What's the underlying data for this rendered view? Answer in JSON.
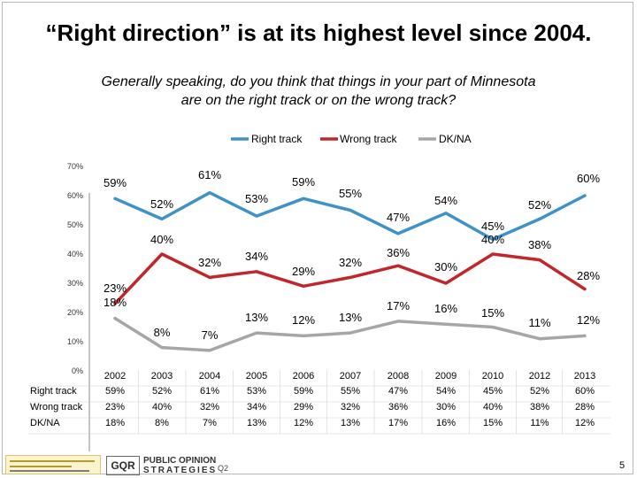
{
  "title": "“Right direction” is at its highest level since 2004.",
  "subtitle_line1": "Generally speaking, do you think that things in your part of Minnesota",
  "subtitle_line2": "are on the right track or on the wrong track?",
  "footer_id": "Q2",
  "page_number": "5",
  "logo_pos_line1": "PUBLIC OPINION",
  "logo_pos_line2": "STRATEGIES",
  "logo_gqa": "GQR",
  "colors": {
    "right_track": "#3e92c8",
    "wrong_track": "#c0262c",
    "dk_na": "#a6a6a6",
    "accent_line": "#8a8a8a"
  },
  "chart_data": {
    "type": "line",
    "title": "",
    "xlabel": "",
    "ylabel": "",
    "ylim": [
      0,
      70
    ],
    "yticks": [
      "0%",
      "10%",
      "20%",
      "30%",
      "40%",
      "50%",
      "60%",
      "70%"
    ],
    "gridlines": false,
    "legend_position": "top",
    "categories": [
      "2002",
      "2003",
      "2004",
      "2005",
      "2006",
      "2007",
      "2008",
      "2009",
      "2010",
      "2012",
      "2013"
    ],
    "series": [
      {
        "name": "Right track",
        "color_key": "right_track",
        "values": [
          59,
          52,
          61,
          53,
          59,
          55,
          47,
          54,
          45,
          52,
          60
        ],
        "labels": [
          "59%",
          "52%",
          "61%",
          "53%",
          "59%",
          "55%",
          "47%",
          "54%",
          "45%",
          "52%",
          "60%"
        ],
        "table_values": [
          "59%",
          "52%",
          "61%",
          "53%",
          "59%",
          "55%",
          "47%",
          "54%",
          "45%",
          "52%",
          "60%"
        ]
      },
      {
        "name": "Wrong track",
        "color_key": "wrong_track",
        "values": [
          23,
          40,
          32,
          34,
          29,
          32,
          36,
          30,
          40,
          38,
          28
        ],
        "labels": [
          "23%",
          "40%",
          "32%",
          "34%",
          "29%",
          "32%",
          "36%",
          "30%",
          "40%",
          "38%",
          "28%"
        ],
        "table_values": [
          "23%",
          "40%",
          "32%",
          "34%",
          "29%",
          "32%",
          "36%",
          "30%",
          "40%",
          "38%",
          "28%"
        ]
      },
      {
        "name": "DK/NA",
        "color_key": "dk_na",
        "values": [
          18,
          8,
          7,
          13,
          12,
          13,
          17,
          16,
          15,
          11,
          12
        ],
        "labels": [
          "18%",
          "8%",
          "7%",
          "13%",
          "12%",
          "13%",
          "17%",
          "16%",
          "15%",
          "11%",
          "12%"
        ],
        "table_values": [
          "18%",
          "8%",
          "7%",
          "13%",
          "12%",
          "13%",
          "17%",
          "16%",
          "15%",
          "11%",
          "12%"
        ]
      }
    ],
    "table_row_labels": [
      "Right track",
      "Wrong track",
      "DK/NA"
    ]
  }
}
